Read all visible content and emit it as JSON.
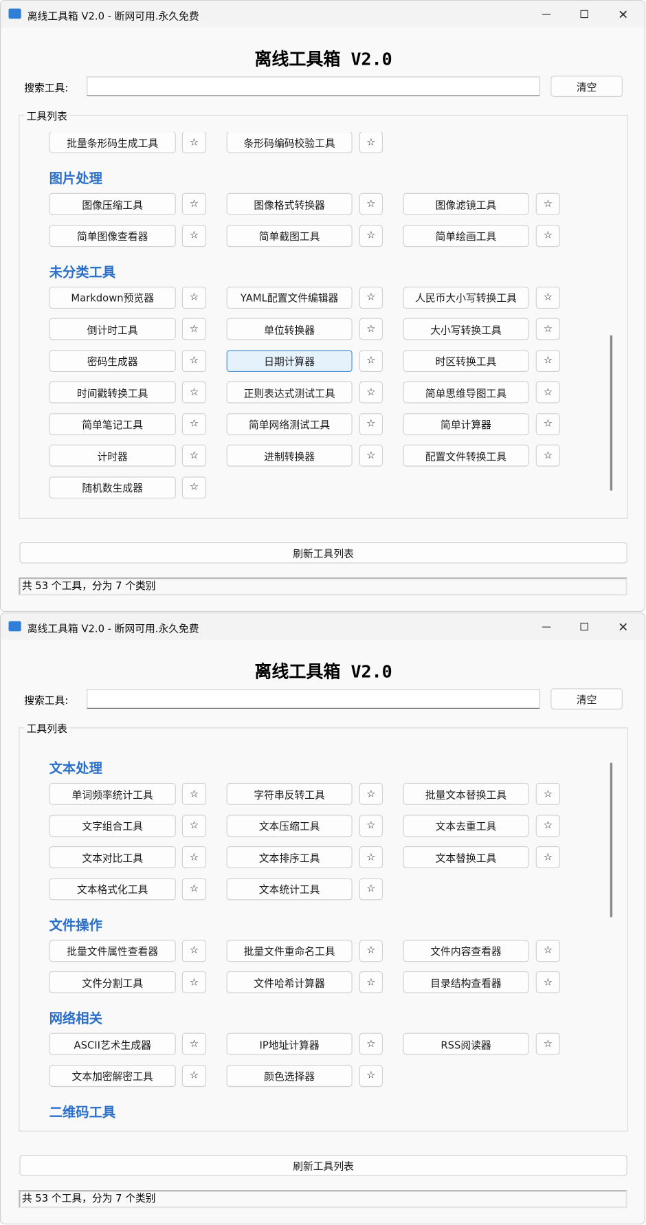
{
  "windows": [
    {
      "title": "离线工具箱 V2.0 - 断网可用.永久免费",
      "heading": "离线工具箱 V2.0",
      "search_label": "搜索工具:",
      "clear_button": "清空",
      "group_label": "工具列表",
      "star": "☆",
      "sections": [
        {
          "tools": [
            "批量条形码生成工具",
            "条形码编码校验工具"
          ]
        },
        {
          "title": "图片处理",
          "tools": [
            "图像压缩工具",
            "图像格式转换器",
            "图像滤镜工具",
            "简单图像查看器",
            "简单截图工具",
            "简单绘画工具"
          ]
        },
        {
          "title": "未分类工具",
          "tools": [
            "Markdown预览器",
            "YAML配置文件编辑器",
            "人民币大小写转换工具",
            "倒计时工具",
            "单位转换器",
            "大小写转换工具",
            "密码生成器",
            "日期计算器",
            "时区转换工具",
            "时间戳转换工具",
            "正则表达式测试工具",
            "简单思维导图工具",
            "简单笔记工具",
            "简单网络测试工具",
            "简单计算器",
            "计时器",
            "进制转换器",
            "配置文件转换工具",
            "随机数生成器"
          ]
        }
      ],
      "refresh_button": "刷新工具列表",
      "status": "共 53 个工具，分为 7 个类别"
    },
    {
      "title": "离线工具箱 V2.0 - 断网可用.永久免费",
      "heading": "离线工具箱 V2.0",
      "search_label": "搜索工具:",
      "clear_button": "清空",
      "group_label": "工具列表",
      "star": "☆",
      "sections": [
        {
          "title": "文本处理",
          "tools": [
            "单词频率统计工具",
            "字符串反转工具",
            "批量文本替换工具",
            "文字组合工具",
            "文本压缩工具",
            "文本去重工具",
            "文本对比工具",
            "文本排序工具",
            "文本替换工具",
            "文本格式化工具",
            "文本统计工具"
          ]
        },
        {
          "title": "文件操作",
          "tools": [
            "批量文件属性查看器",
            "批量文件重命名工具",
            "文件内容查看器",
            "文件分割工具",
            "文件哈希计算器",
            "目录结构查看器"
          ]
        },
        {
          "title": "网络相关",
          "tools": [
            "ASCII艺术生成器",
            "IP地址计算器",
            "RSS阅读器",
            "文本加密解密工具",
            "颜色选择器"
          ]
        },
        {
          "title": "二维码工具",
          "tools": []
        }
      ],
      "refresh_button": "刷新工具列表",
      "status": "共 53 个工具，分为 7 个类别"
    }
  ]
}
